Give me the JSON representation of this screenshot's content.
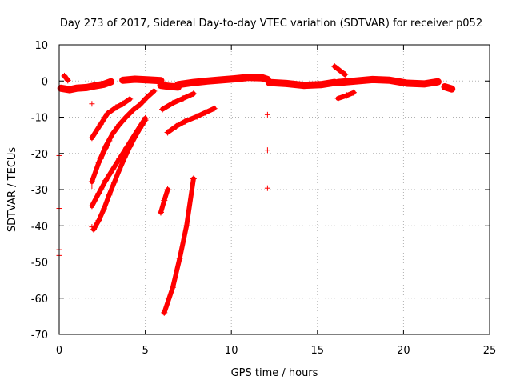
{
  "chart_data": {
    "type": "scatter",
    "title": "Day 273 of 2017, Sidereal Day-to-day VTEC variation (SDTVAR) for receiver p052",
    "xlabel": "GPS time / hours",
    "ylabel": "SDTVAR / TECUs",
    "xlim": [
      0,
      25
    ],
    "ylim": [
      -70,
      10
    ],
    "xticks": [
      0,
      5,
      10,
      15,
      20,
      25
    ],
    "yticks": [
      10,
      0,
      -10,
      -20,
      -30,
      -40,
      -50,
      -60,
      -70
    ],
    "grid": true,
    "series_color": "#ff0000",
    "marker": "+",
    "segments": [
      {
        "name": "band-early-a",
        "x": [
          0.1,
          0.6,
          1.0,
          1.6,
          2.0,
          2.6,
          3.0
        ],
        "y": [
          -2.0,
          -2.4,
          -2.0,
          -1.8,
          -1.4,
          -0.9,
          -0.2
        ]
      },
      {
        "name": "band-mid-a",
        "x": [
          3.7,
          4.4,
          5.2,
          5.9
        ],
        "y": [
          0.2,
          0.5,
          0.3,
          0.1
        ]
      },
      {
        "name": "band-mid-b",
        "x": [
          5.9,
          6.4,
          6.9
        ],
        "y": [
          -1.2,
          -1.5,
          -1.7
        ]
      },
      {
        "name": "band-mid-c",
        "x": [
          6.9,
          7.8,
          8.6,
          9.4,
          10.2,
          11.0,
          11.8,
          12.1
        ],
        "y": [
          -1.0,
          -0.4,
          0.0,
          0.3,
          0.6,
          1.0,
          0.9,
          0.4
        ]
      },
      {
        "name": "band-late-a",
        "x": [
          12.2,
          13.2,
          14.2,
          15.2,
          16.0
        ],
        "y": [
          -0.4,
          -0.7,
          -1.2,
          -1.0,
          -0.4
        ]
      },
      {
        "name": "band-late-b",
        "x": [
          16.2,
          17.2,
          18.2,
          19.2,
          20.2,
          21.2,
          22.0
        ],
        "y": [
          -0.4,
          0.0,
          0.4,
          0.2,
          -0.6,
          -0.8,
          -0.2
        ]
      },
      {
        "name": "band-late-c",
        "x": [
          22.4,
          22.8
        ],
        "y": [
          -1.6,
          -2.2
        ]
      },
      {
        "name": "arc-1",
        "x": [
          1.9,
          2.4,
          2.8,
          3.3,
          3.7,
          4.1
        ],
        "y": [
          -15.7,
          -12.0,
          -9.0,
          -7.3,
          -6.3,
          -5.0
        ]
      },
      {
        "name": "arc-2",
        "x": [
          1.9,
          2.3,
          2.7,
          3.1,
          3.5,
          3.9,
          4.3,
          4.7,
          5.1,
          5.5
        ],
        "y": [
          -27.8,
          -22.5,
          -18.0,
          -14.6,
          -12.0,
          -9.9,
          -8.0,
          -6.5,
          -4.5,
          -2.8
        ]
      },
      {
        "name": "arc-3",
        "x": [
          1.9,
          2.3,
          2.7,
          3.1,
          3.5,
          3.9,
          4.3,
          4.7,
          5.0
        ],
        "y": [
          -34.5,
          -31.0,
          -27.5,
          -24.5,
          -21.5,
          -18.5,
          -15.5,
          -12.5,
          -10.3
        ]
      },
      {
        "name": "arc-4",
        "x": [
          2.0,
          2.3,
          2.6,
          2.9,
          3.2,
          3.5,
          3.8,
          4.1,
          4.4,
          4.7,
          5.0
        ],
        "y": [
          -41.0,
          -38.5,
          -35.3,
          -31.5,
          -28.0,
          -24.5,
          -21.2,
          -18.2,
          -15.5,
          -13.0,
          -10.8
        ]
      },
      {
        "name": "arc-5",
        "x": [
          2.4,
          2.7,
          2.9
        ],
        "y": [
          -21.5,
          -18.5,
          -16.5
        ]
      },
      {
        "name": "arc-6",
        "x": [
          6.1,
          6.6,
          7.0,
          7.4,
          7.8
        ],
        "y": [
          -64.0,
          -57.0,
          -49.0,
          -40.0,
          -27.0
        ]
      },
      {
        "name": "arc-7",
        "x": [
          5.9,
          6.1,
          6.3
        ],
        "y": [
          -36.3,
          -33.0,
          -30.0
        ]
      },
      {
        "name": "arc-8",
        "x": [
          6.0,
          6.6,
          7.2,
          7.8
        ],
        "y": [
          -7.8,
          -6.1,
          -4.8,
          -3.5
        ]
      },
      {
        "name": "arc-9",
        "x": [
          6.3,
          6.8,
          7.3,
          8.0,
          8.5,
          9.0
        ],
        "y": [
          -14.2,
          -12.5,
          -11.2,
          -9.8,
          -8.7,
          -7.6
        ]
      },
      {
        "name": "arc-10",
        "x": [
          16.0,
          16.6
        ],
        "y": [
          4.0,
          1.8
        ]
      },
      {
        "name": "arc-11",
        "x": [
          16.2,
          16.7,
          17.1
        ],
        "y": [
          -4.8,
          -4.0,
          -3.2
        ]
      },
      {
        "name": "arc-12",
        "x": [
          0.3,
          0.5
        ],
        "y": [
          1.4,
          0.2
        ]
      }
    ],
    "outliers": [
      {
        "x": 0.0,
        "y": -20.6
      },
      {
        "x": 0.0,
        "y": -35.2
      },
      {
        "x": 0.0,
        "y": -46.6
      },
      {
        "x": 0.0,
        "y": -48.2
      },
      {
        "x": 1.9,
        "y": -6.3
      },
      {
        "x": 1.9,
        "y": -29.0
      },
      {
        "x": 1.9,
        "y": -40.3
      },
      {
        "x": 12.1,
        "y": -9.3
      },
      {
        "x": 12.1,
        "y": -19.1
      },
      {
        "x": 12.1,
        "y": -29.6
      }
    ]
  }
}
